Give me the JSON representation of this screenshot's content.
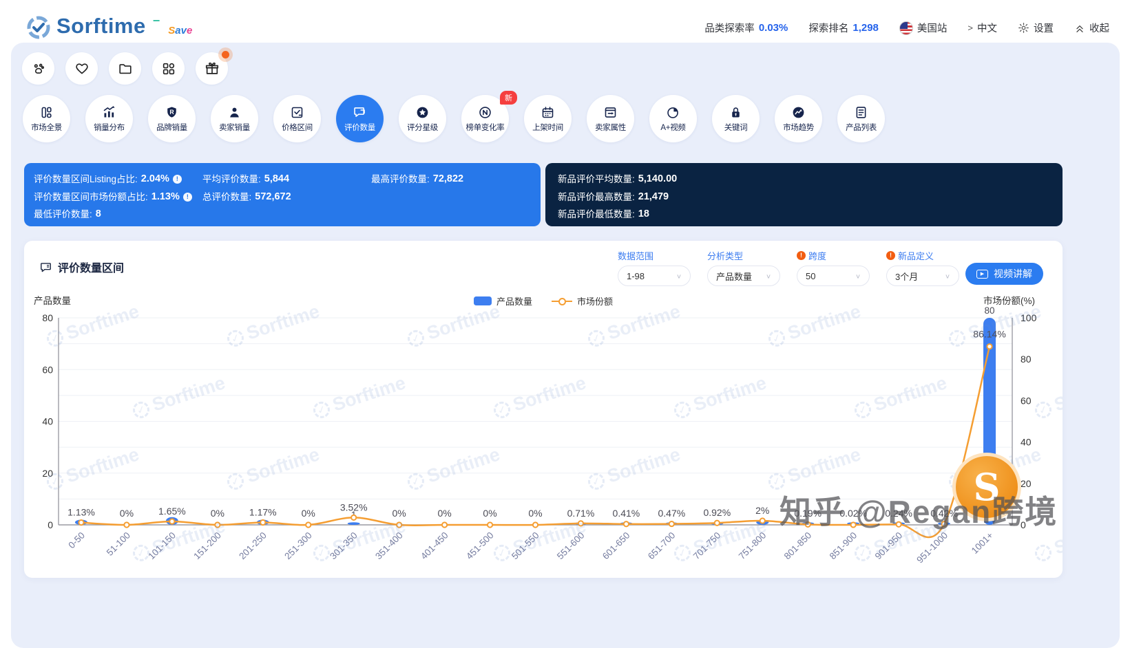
{
  "header": {
    "logo_text": "Sorftime",
    "logo_badge": "Save",
    "stats": [
      {
        "label": "品类探索率",
        "value": "0.03%"
      },
      {
        "label": "探索排名",
        "value": "1,298"
      }
    ],
    "site_label": "美国站",
    "lang_label": "中文",
    "settings_label": "设置",
    "collapse_label": "收起",
    "accent_color": "#2563eb"
  },
  "quick_actions": [
    {
      "key": "paw",
      "icon": "paw-icon",
      "dot": false
    },
    {
      "key": "favorites",
      "icon": "heart-icon",
      "dot": false
    },
    {
      "key": "folder",
      "icon": "folder-icon",
      "dot": false
    },
    {
      "key": "apps",
      "icon": "grid-icon",
      "dot": false
    },
    {
      "key": "gift",
      "icon": "gift-icon",
      "dot": true
    }
  ],
  "tabs": [
    {
      "key": "market-overview",
      "label": "市场全景",
      "icon": "market-overview-icon",
      "selected": false,
      "badge": ""
    },
    {
      "key": "sales-distribution",
      "label": "销量分布",
      "icon": "sales-distribution-icon",
      "selected": false,
      "badge": ""
    },
    {
      "key": "brand-sales",
      "label": "品牌销量",
      "icon": "brand-sales-icon",
      "selected": false,
      "badge": ""
    },
    {
      "key": "seller-sales",
      "label": "卖家销量",
      "icon": "seller-sales-icon",
      "selected": false,
      "badge": ""
    },
    {
      "key": "price-range",
      "label": "价格区间",
      "icon": "price-range-icon",
      "selected": false,
      "badge": ""
    },
    {
      "key": "review-count",
      "label": "评价数量",
      "icon": "review-count-icon",
      "selected": true,
      "badge": ""
    },
    {
      "key": "star-rating",
      "label": "评分星级",
      "icon": "star-rating-icon",
      "selected": false,
      "badge": ""
    },
    {
      "key": "rank-change",
      "label": "榜单变化率",
      "icon": "rank-change-icon",
      "selected": false,
      "badge": "新"
    },
    {
      "key": "launch-date",
      "label": "上架时间",
      "icon": "launch-date-icon",
      "selected": false,
      "badge": ""
    },
    {
      "key": "seller-attribute",
      "label": "卖家属性",
      "icon": "seller-attribute-icon",
      "selected": false,
      "badge": ""
    },
    {
      "key": "aplus-video",
      "label": "A+视频",
      "icon": "aplus-video-icon",
      "selected": false,
      "badge": ""
    },
    {
      "key": "keyword",
      "label": "关键词",
      "icon": "keyword-icon",
      "selected": false,
      "badge": ""
    },
    {
      "key": "market-trend",
      "label": "市场趋势",
      "icon": "market-trend-icon",
      "selected": false,
      "badge": ""
    },
    {
      "key": "product-list",
      "label": "产品列表",
      "icon": "product-list-icon",
      "selected": false,
      "badge": ""
    }
  ],
  "summary_blue": {
    "col1": [
      {
        "label": "评价数量区间Listing占比",
        "value": "2.04%",
        "info": true
      },
      {
        "label": "评价数量区间市场份额占比",
        "value": "1.13%",
        "info": true
      },
      {
        "label": "最低评价数量",
        "value": "8",
        "info": false
      }
    ],
    "col2": [
      {
        "label": "平均评价数量",
        "value": "5,844",
        "info": false
      },
      {
        "label": "总评价数量",
        "value": "572,672",
        "info": false
      }
    ],
    "col3": [
      {
        "label": "最高评价数量",
        "value": "72,822",
        "info": false
      }
    ]
  },
  "summary_dark": [
    {
      "label": "新品评价平均数量",
      "value": "5,140.00"
    },
    {
      "label": "新品评价最高数量",
      "value": "21,479"
    },
    {
      "label": "新品评价最低数量",
      "value": "18"
    }
  ],
  "chart_section": {
    "title": "评价数量区间",
    "controls": [
      {
        "key": "data-range",
        "label": "数据范围",
        "value": "1-98",
        "warn": false
      },
      {
        "key": "analysis-type",
        "label": "分析类型",
        "value": "产品数量",
        "warn": false
      },
      {
        "key": "span",
        "label": "跨度",
        "value": "50",
        "warn": true
      },
      {
        "key": "new-product-definition",
        "label": "新品定义",
        "value": "3个月",
        "warn": true
      }
    ],
    "video_button": "视频讲解",
    "left_axis_title": "产品数量",
    "right_axis_title": "市场份额(%)"
  },
  "chart_data": {
    "type": "bar",
    "subtype": "bar+line combo",
    "categories": [
      "0-50",
      "51-100",
      "101-150",
      "151-200",
      "201-250",
      "251-300",
      "301-350",
      "351-400",
      "401-450",
      "451-500",
      "501-550",
      "551-600",
      "601-650",
      "651-700",
      "701-750",
      "751-800",
      "801-850",
      "851-900",
      "901-950",
      "951-1000",
      "1001+"
    ],
    "series": [
      {
        "name": "产品数量",
        "type": "bar",
        "axis": "left",
        "color": "#3d7ef0",
        "values": [
          2,
          0,
          3,
          0,
          2,
          0,
          1,
          0,
          0,
          0,
          0,
          1,
          1,
          1,
          1,
          2,
          1,
          1,
          1,
          1,
          80
        ],
        "value_labels": [
          "",
          "",
          "",
          "",
          "",
          "",
          "1",
          "",
          "",
          "",
          "",
          "",
          "",
          "",
          "",
          "",
          "",
          "",
          "",
          "",
          "80"
        ]
      },
      {
        "name": "市场份额",
        "type": "line",
        "axis": "right",
        "unit": "%",
        "color": "#f59e32",
        "values": [
          1.13,
          0,
          1.65,
          0,
          1.17,
          0,
          3.52,
          0,
          0,
          0,
          0,
          0.71,
          0.41,
          0.47,
          0.92,
          2,
          0.19,
          0.02,
          0.24,
          0.42,
          86.14
        ],
        "value_labels": [
          "1.13%",
          "0%",
          "1.65%",
          "0%",
          "1.17%",
          "0%",
          "3.52%",
          "0%",
          "0%",
          "0%",
          "0%",
          "0.71%",
          "0.41%",
          "0.47%",
          "0.92%",
          "2%",
          "0.19%",
          "0.02%",
          "0.24%",
          "0.42%",
          "86.14%"
        ]
      }
    ],
    "left_ylabel": "产品数量",
    "right_ylabel": "市场份额(%)",
    "left_ylim": [
      0,
      80
    ],
    "right_ylim": [
      0,
      100
    ],
    "left_ticks": [
      80,
      60,
      40,
      20,
      0
    ],
    "right_ticks": [
      100,
      80,
      60,
      40,
      20,
      0
    ],
    "grid": true,
    "legend_position": "top-center"
  },
  "watermarks": {
    "brand": "Sorftime",
    "credit": "知乎 @Regan跨境",
    "logo_letter": "S"
  }
}
